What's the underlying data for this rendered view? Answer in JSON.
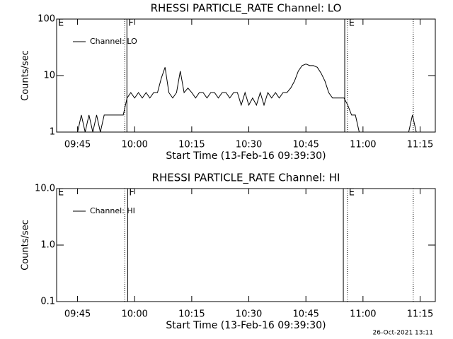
{
  "chart_data": [
    {
      "type": "line",
      "title": "RHESSI PARTICLE_RATE Channel: LO",
      "xlabel": "Start Time (13-Feb-16 09:39:30)",
      "ylabel": "Counts/sec",
      "log_y": true,
      "legend": "top-left",
      "xlim": [
        "09:39:30",
        "11:19:00"
      ],
      "xticks": [
        "09:45",
        "10:00",
        "10:15",
        "10:30",
        "10:45",
        "11:00",
        "11:15"
      ],
      "ylim": [
        1,
        100
      ],
      "yticks": [
        1,
        10,
        100
      ],
      "x": [
        "09:45",
        "09:46",
        "09:47",
        "09:48",
        "09:49",
        "09:50",
        "09:51",
        "09:52",
        "09:53",
        "09:54",
        "09:55",
        "09:56",
        "09:57",
        "09:58",
        "09:59",
        "10:00",
        "10:01",
        "10:02",
        "10:03",
        "10:04",
        "10:05",
        "10:06",
        "10:07",
        "10:08",
        "10:09",
        "10:10",
        "10:11",
        "10:12",
        "10:13",
        "10:14",
        "10:15",
        "10:16",
        "10:17",
        "10:18",
        "10:19",
        "10:20",
        "10:21",
        "10:22",
        "10:23",
        "10:24",
        "10:25",
        "10:26",
        "10:27",
        "10:28",
        "10:29",
        "10:30",
        "10:31",
        "10:32",
        "10:33",
        "10:34",
        "10:35",
        "10:36",
        "10:37",
        "10:38",
        "10:39",
        "10:40",
        "10:41",
        "10:42",
        "10:43",
        "10:44",
        "10:45",
        "10:46",
        "10:47",
        "10:48",
        "10:49",
        "10:50",
        "10:51",
        "10:52",
        "10:53",
        "10:54",
        "10:55",
        "10:56",
        "10:57",
        "10:58",
        "10:59",
        "11:00",
        "11:12",
        "11:13",
        "11:14"
      ],
      "series": [
        {
          "name": "Channel: LO",
          "color": "#000000",
          "values": [
            1,
            2,
            1,
            2,
            1,
            2,
            1,
            2,
            2,
            2,
            2,
            2,
            2,
            4,
            5,
            4,
            5,
            4,
            5,
            4,
            5,
            5,
            9,
            14,
            5,
            4,
            5,
            12,
            5,
            6,
            5,
            4,
            5,
            5,
            4,
            5,
            5,
            4,
            5,
            5,
            4,
            5,
            5,
            3,
            5,
            3,
            4,
            3,
            5,
            3,
            5,
            4,
            5,
            4,
            5,
            5,
            6,
            8,
            12,
            15,
            16,
            15,
            15,
            14,
            11,
            8,
            5,
            4,
            4,
            4,
            4,
            3,
            2,
            2,
            1,
            null,
            1,
            2,
            1
          ]
        }
      ],
      "vlines": [
        {
          "time": "09:57:24",
          "style": "dotted"
        },
        {
          "time": "09:57:58",
          "style": "solid"
        },
        {
          "time": "10:55:12",
          "style": "solid"
        },
        {
          "time": "10:55:54",
          "style": "dotted"
        },
        {
          "time": "11:13:12",
          "style": "dotted"
        }
      ],
      "flags": [
        {
          "label": "E",
          "time": "09:39:30"
        },
        {
          "label": "F",
          "time": "09:57:58"
        },
        {
          "label": "E",
          "time": "10:55:54"
        }
      ]
    },
    {
      "type": "line",
      "title": "RHESSI PARTICLE_RATE Channel: HI",
      "xlabel": "Start Time (13-Feb-16 09:39:30)",
      "ylabel": "Counts/sec",
      "log_y": true,
      "legend": "top-left",
      "xlim": [
        "09:39:30",
        "11:19:00"
      ],
      "xticks": [
        "09:45",
        "10:00",
        "10:15",
        "10:30",
        "10:45",
        "11:00",
        "11:15"
      ],
      "ylim": [
        0.1,
        10
      ],
      "yticks": [
        {
          "value": 0.1,
          "label": "0.1"
        },
        {
          "value": 1,
          "label": "1.0"
        },
        {
          "value": 10,
          "label": "10.0"
        }
      ],
      "x": [],
      "series": [
        {
          "name": "Channel: HI",
          "color": "#000000",
          "values": []
        }
      ],
      "vlines": [
        {
          "time": "09:57:24",
          "style": "dotted"
        },
        {
          "time": "09:58:10",
          "style": "solid"
        },
        {
          "time": "10:54:50",
          "style": "solid"
        },
        {
          "time": "10:55:54",
          "style": "dotted"
        },
        {
          "time": "11:13:12",
          "style": "dotted"
        }
      ],
      "flags": [
        {
          "label": "E",
          "time": "09:39:30"
        },
        {
          "label": "F",
          "time": "09:58:10"
        },
        {
          "label": "E",
          "time": "10:55:54"
        }
      ]
    }
  ],
  "timestamp": "26-Oct-2021 13:11"
}
